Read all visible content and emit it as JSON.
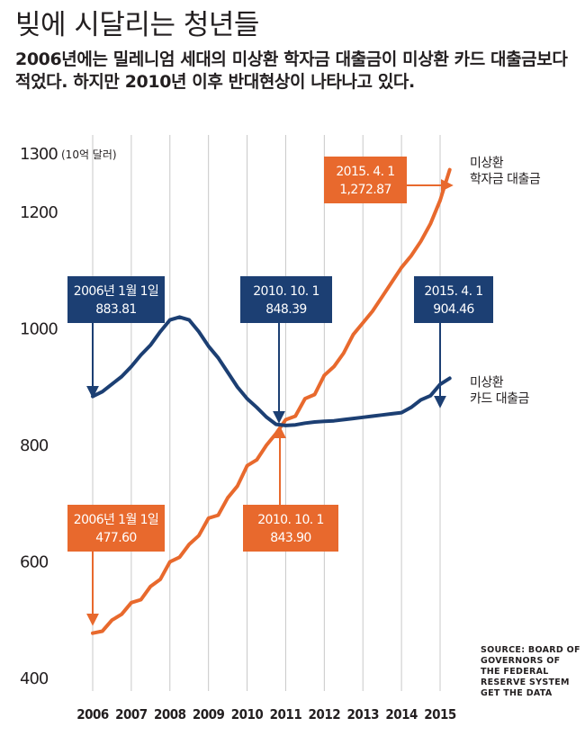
{
  "title": "빚에 시달리는 청년들",
  "subtitle": "2006년에는 밀레니엄 세대의 미상환 학자금 대출금이 미상환 카드 대출금보다 적었다. 하지만 2010년 이후 반대현상이 나타나고 있다.",
  "source": "SOURCE: BOARD OF GOVERNORS OF THE FEDERAL RESERVE SYSTEM GET THE DATA",
  "colors": {
    "student": "#e8692d",
    "card": "#1c3f73",
    "grid": "#c8c8c8",
    "text": "#231f20"
  },
  "chart_data": {
    "type": "line",
    "ylabel": "(10억 달러)",
    "ylim": [
      400,
      1300
    ],
    "y_ticks": [
      400,
      600,
      800,
      1000,
      1200,
      1300
    ],
    "x_ticks": [
      "2006",
      "2007",
      "2008",
      "2009",
      "2010",
      "2011",
      "2012",
      "2013",
      "2014",
      "2015"
    ],
    "grid": "vertical",
    "series": [
      {
        "name": "미상환 학자금 대출금",
        "color": "#e8692d",
        "x": [
          2006.0,
          2006.25,
          2006.5,
          2006.75,
          2007.0,
          2007.25,
          2007.5,
          2007.75,
          2008.0,
          2008.25,
          2008.5,
          2008.75,
          2009.0,
          2009.25,
          2009.5,
          2009.75,
          2010.0,
          2010.25,
          2010.5,
          2010.75,
          2011.0,
          2011.25,
          2011.5,
          2011.75,
          2012.0,
          2012.25,
          2012.5,
          2012.75,
          2013.0,
          2013.25,
          2013.5,
          2013.75,
          2014.0,
          2014.25,
          2014.5,
          2014.75,
          2015.0,
          2015.25
        ],
        "values": [
          477.6,
          481,
          500,
          510,
          530,
          535,
          558,
          570,
          600,
          608,
          630,
          645,
          675,
          680,
          710,
          730,
          765,
          775,
          800,
          820,
          843.9,
          850,
          880,
          887,
          920,
          935,
          958,
          990,
          1010,
          1030,
          1055,
          1080,
          1105,
          1125,
          1150,
          1180,
          1220,
          1272.87
        ]
      },
      {
        "name": "미상환 카드 대출금",
        "color": "#1c3f73",
        "x": [
          2006.0,
          2006.25,
          2006.5,
          2006.75,
          2007.0,
          2007.25,
          2007.5,
          2007.75,
          2008.0,
          2008.25,
          2008.5,
          2008.75,
          2009.0,
          2009.25,
          2009.5,
          2009.75,
          2010.0,
          2010.25,
          2010.5,
          2010.75,
          2011.0,
          2011.25,
          2011.5,
          2011.75,
          2012.0,
          2012.25,
          2012.5,
          2012.75,
          2013.0,
          2013.25,
          2013.5,
          2013.75,
          2014.0,
          2014.25,
          2014.5,
          2014.75,
          2015.0,
          2015.25
        ],
        "values": [
          883.81,
          892,
          905,
          918,
          935,
          955,
          972,
          995,
          1015,
          1020,
          1015,
          995,
          970,
          950,
          925,
          900,
          880,
          865,
          848.39,
          836,
          834,
          835,
          838,
          840,
          841,
          842,
          844,
          846,
          848,
          850,
          852,
          854,
          856,
          865,
          878,
          885,
          904.46,
          915
        ]
      }
    ],
    "series_labels": [
      {
        "series": 0,
        "lines": [
          "미상환",
          "학자금 대출금"
        ]
      },
      {
        "series": 1,
        "lines": [
          "미상환",
          "카드 대출금"
        ]
      }
    ],
    "annotations": [
      {
        "series": 0,
        "x": 2006.0,
        "y": 477.6,
        "lines": [
          "2006년 1월 1일",
          "477.60"
        ]
      },
      {
        "series": 1,
        "x": 2006.0,
        "y": 883.81,
        "lines": [
          "2006년 1월 1일",
          "883.81"
        ]
      },
      {
        "series": 1,
        "x": 2010.5,
        "y": 848.39,
        "lines": [
          "2010. 10. 1",
          "848.39"
        ]
      },
      {
        "series": 0,
        "x": 2011.0,
        "y": 843.9,
        "lines": [
          "2010. 10. 1",
          "843.90"
        ]
      },
      {
        "series": 1,
        "x": 2015.0,
        "y": 904.46,
        "lines": [
          "2015. 4. 1",
          "904.46"
        ]
      },
      {
        "series": 0,
        "x": 2015.25,
        "y": 1272.87,
        "lines": [
          "2015. 4. 1",
          "1,272.87"
        ]
      }
    ]
  }
}
